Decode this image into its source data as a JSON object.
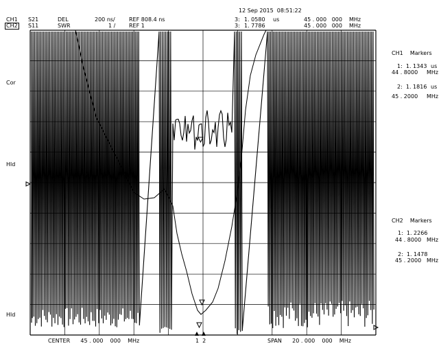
{
  "header": {
    "timestamp": "12 Sep 2015  08:51:22",
    "ch1": {
      "channel": "CH1",
      "param": "S21",
      "format": "DEL",
      "scale": "200 ns/",
      "ref": "REF 808.4 ns"
    },
    "ch2": {
      "channel": "CH2",
      "param": "S11",
      "format": "SWR",
      "scale": "1 /",
      "ref": "REF 1"
    },
    "marker_readouts": [
      {
        "id": "3:",
        "value": "1. 0580",
        "unit": "us",
        "freq": "45 . 000   000",
        "freq_unit": "MHz"
      },
      {
        "id": "3:",
        "value": "1. 7786",
        "unit": "",
        "freq": "45 . 000   000",
        "freq_unit": "MHz"
      }
    ]
  },
  "left_labels": {
    "cor": "Cor",
    "hld_top": "Hld",
    "hld_bottom": "Hld"
  },
  "ch1_markers": {
    "title": "CH1    Markers",
    "items": [
      {
        "label": "1:  1. 1343",
        "unit": "us",
        "freq": "44 . 8000",
        "freq_unit": "MHz"
      },
      {
        "label": "2:  1. 1816",
        "unit": "us",
        "freq": "45 . 2000",
        "freq_unit": "MHz"
      }
    ]
  },
  "ch2_markers": {
    "title": "CH2    Markers",
    "items": [
      {
        "label": "1:  1. 2266",
        "freq": "44 . 8000",
        "freq_unit": "MHz"
      },
      {
        "label": "2:  1. 1478",
        "freq": "45 . 2000",
        "freq_unit": "MHz"
      }
    ]
  },
  "footer": {
    "center": "CENTER      45 . 000    000    MHz",
    "span": "SPAN      20 . 000    000    MHz",
    "marker_ticks": "1  2"
  }
}
